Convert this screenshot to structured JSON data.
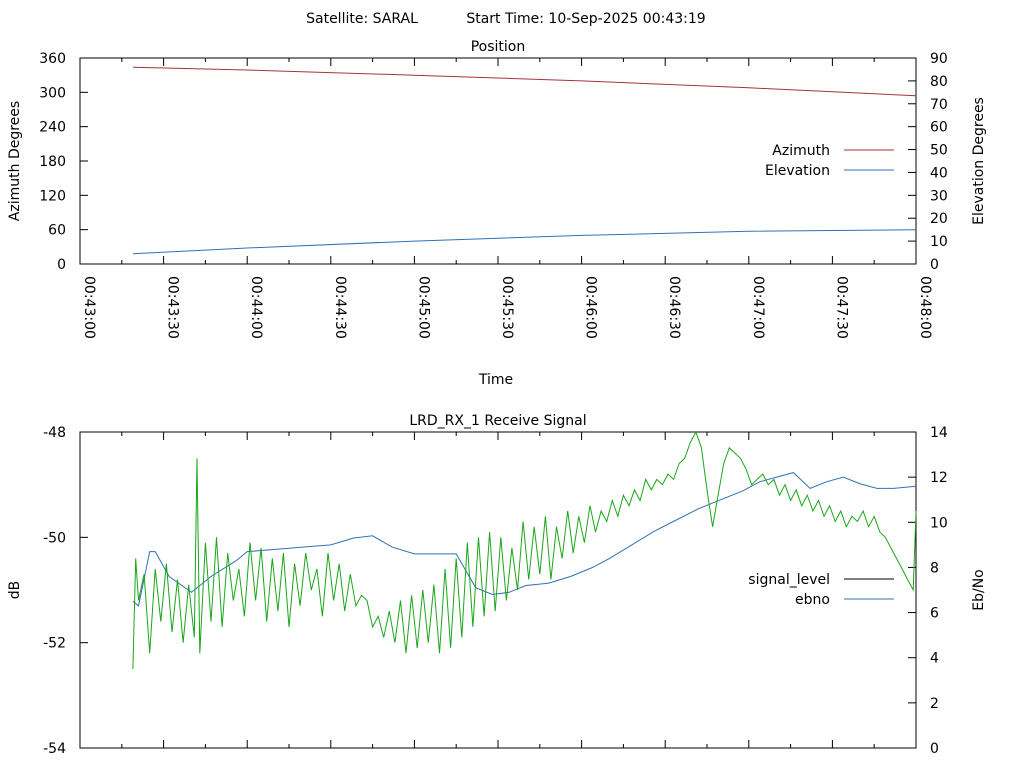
{
  "header": {
    "satellite": "Satellite: SARAL",
    "start_time": "Start Time: 10-Sep-2025 00:43:19"
  },
  "chart_data": [
    {
      "type": "line",
      "title": "Position",
      "xlabel": "Time",
      "ylabel": "Azimuth Degrees",
      "y2label": "Elevation Degrees",
      "x_ticks": [
        "00:43:00",
        "00:43:30",
        "00:44:00",
        "00:44:30",
        "00:45:00",
        "00:45:30",
        "00:46:00",
        "00:46:30",
        "00:47:00",
        "00:47:30",
        "00:48:00"
      ],
      "xlim_seconds": [
        0,
        300
      ],
      "ylim": [
        0,
        360
      ],
      "y_ticks": [
        "0",
        "60",
        "120",
        "180",
        "240",
        "300",
        "360"
      ],
      "y2lim": [
        0,
        90
      ],
      "y2_ticks": [
        "0",
        "10",
        "20",
        "30",
        "40",
        "50",
        "60",
        "70",
        "80",
        "90"
      ],
      "legend_position": "right",
      "series": [
        {
          "name": "Azimuth",
          "axis": "y",
          "color": "#a0363a",
          "x_seconds": [
            19,
            60,
            120,
            180,
            240,
            300
          ],
          "values": [
            344,
            339,
            330,
            320,
            308,
            294
          ]
        },
        {
          "name": "Elevation",
          "axis": "y2",
          "color": "#2e72b6",
          "x_seconds": [
            19,
            60,
            120,
            180,
            240,
            300
          ],
          "values": [
            4.5,
            7,
            10,
            12.5,
            14.3,
            15
          ]
        }
      ]
    },
    {
      "type": "line",
      "title": "LRD_RX_1 Receive Signal",
      "ylabel": "dB",
      "y2label": "Eb/No",
      "ylim": [
        -54,
        -48
      ],
      "y_ticks": [
        "-54",
        "-52",
        "-50",
        "-48"
      ],
      "y2lim": [
        0,
        14
      ],
      "y2_ticks": [
        "0",
        "2",
        "4",
        "6",
        "8",
        "10",
        "12",
        "14"
      ],
      "xlim_seconds": [
        0,
        300
      ],
      "legend_position": "right",
      "series": [
        {
          "name": "signal_level",
          "axis": "y",
          "color": "#000000",
          "x_seconds": [],
          "values": []
        },
        {
          "name": "ebno",
          "axis": "y2",
          "color": "#2e72b6",
          "x_seconds": [
            19,
            21,
            25,
            27,
            32,
            40,
            47,
            56,
            60,
            70,
            80,
            90,
            98,
            105,
            112,
            120,
            128,
            135,
            142,
            148,
            154,
            160,
            168,
            176,
            184,
            190,
            198,
            206,
            214,
            222,
            230,
            238,
            244,
            250,
            256,
            262,
            268,
            274,
            280,
            286,
            292,
            300
          ],
          "values": [
            6.5,
            6.3,
            8.7,
            8.7,
            7.6,
            6.9,
            7.6,
            8.3,
            8.7,
            8.8,
            8.9,
            9.0,
            9.3,
            9.4,
            8.9,
            8.6,
            8.6,
            8.6,
            7.1,
            6.8,
            6.9,
            7.2,
            7.3,
            7.6,
            8.0,
            8.4,
            9.0,
            9.6,
            10.1,
            10.6,
            11.0,
            11.4,
            11.8,
            12.0,
            12.2,
            11.5,
            11.8,
            12.0,
            11.7,
            11.5,
            11.5,
            11.6
          ]
        },
        {
          "name": "",
          "axis": "y",
          "color": "#1aa61a",
          "legend": false,
          "x_seconds": [
            19,
            20,
            21,
            23,
            25,
            27,
            29,
            31,
            33,
            35,
            37,
            39,
            41,
            42,
            43,
            45,
            47,
            49,
            51,
            53,
            55,
            57,
            59,
            61,
            63,
            65,
            67,
            69,
            71,
            73,
            75,
            77,
            79,
            81,
            83,
            85,
            87,
            89,
            91,
            93,
            95,
            97,
            99,
            101,
            103,
            105,
            107,
            109,
            111,
            113,
            115,
            117,
            119,
            121,
            123,
            125,
            127,
            129,
            131,
            133,
            135,
            137,
            139,
            141,
            143,
            145,
            147,
            149,
            151,
            153,
            155,
            157,
            159,
            161,
            163,
            165,
            167,
            169,
            171,
            173,
            175,
            177,
            179,
            181,
            183,
            185,
            187,
            189,
            191,
            193,
            195,
            197,
            199,
            201,
            203,
            205,
            207,
            209,
            211,
            213,
            215,
            217,
            219,
            221,
            223,
            225,
            227,
            229,
            231,
            233,
            235,
            237,
            239,
            241,
            243,
            245,
            247,
            249,
            251,
            253,
            255,
            257,
            259,
            261,
            263,
            265,
            267,
            269,
            271,
            273,
            275,
            277,
            279,
            281,
            283,
            285,
            287,
            289,
            291,
            293,
            295,
            297,
            299,
            300
          ],
          "values": [
            -52.5,
            -50.4,
            -51.2,
            -50.7,
            -52.2,
            -50.6,
            -51.6,
            -50.5,
            -51.8,
            -50.8,
            -52.0,
            -50.9,
            -51.9,
            -48.5,
            -52.2,
            -50.1,
            -51.6,
            -50.0,
            -51.7,
            -50.3,
            -51.2,
            -50.6,
            -51.5,
            -50.1,
            -51.2,
            -50.2,
            -51.6,
            -50.4,
            -51.4,
            -50.3,
            -51.7,
            -50.5,
            -51.3,
            -50.3,
            -51.0,
            -50.6,
            -51.5,
            -50.3,
            -51.2,
            -50.5,
            -51.4,
            -50.7,
            -51.3,
            -51.1,
            -51.2,
            -51.7,
            -51.5,
            -51.9,
            -51.4,
            -52.0,
            -51.2,
            -52.2,
            -51.1,
            -52.1,
            -51.0,
            -52.0,
            -50.9,
            -52.2,
            -50.6,
            -52.1,
            -50.4,
            -51.9,
            -50.1,
            -51.7,
            -50.0,
            -51.5,
            -49.9,
            -51.4,
            -50.0,
            -51.2,
            -50.2,
            -51.0,
            -49.7,
            -50.8,
            -49.8,
            -50.7,
            -49.6,
            -50.8,
            -49.8,
            -50.4,
            -49.5,
            -50.3,
            -49.6,
            -50.1,
            -49.4,
            -49.9,
            -49.5,
            -49.7,
            -49.3,
            -49.6,
            -49.2,
            -49.4,
            -49.1,
            -49.3,
            -48.9,
            -49.1,
            -48.9,
            -49.0,
            -48.8,
            -48.9,
            -48.6,
            -48.5,
            -48.2,
            -48.0,
            -48.3,
            -49.1,
            -49.8,
            -49.2,
            -48.6,
            -48.3,
            -48.4,
            -48.5,
            -48.7,
            -49.0,
            -48.9,
            -48.8,
            -49.0,
            -48.9,
            -49.2,
            -49.0,
            -49.3,
            -49.1,
            -49.4,
            -49.2,
            -49.5,
            -49.3,
            -49.6,
            -49.4,
            -49.7,
            -49.5,
            -49.8,
            -49.6,
            -49.7,
            -49.5,
            -49.8,
            -49.6,
            -49.9,
            -50.0,
            -50.2,
            -50.4,
            -50.6,
            -50.8,
            -51.0,
            -49.5
          ]
        }
      ]
    }
  ]
}
